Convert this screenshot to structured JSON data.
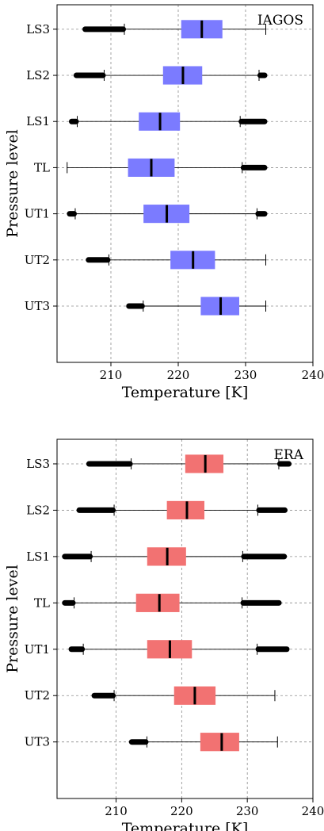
{
  "chart_data": [
    {
      "type": "boxplot",
      "orientation": "horizontal",
      "title": "IAGOS",
      "xlabel": "Temperature [K]",
      "ylabel": "Pressure level",
      "xlim": [
        202,
        240
      ],
      "xticks": [
        210,
        220,
        230,
        240
      ],
      "grid": true,
      "box_color": "#7b7bff",
      "categories": [
        "LS3",
        "LS2",
        "LS1",
        "TL",
        "UT1",
        "UT2",
        "UT3"
      ],
      "boxes": [
        {
          "label": "LS3",
          "whisker_low": 212.0,
          "q1": 220.5,
          "median": 223.5,
          "q3": 226.5,
          "whisker_high": 233.0,
          "outliers_low": [
            206.0,
            212.0
          ],
          "outliers_high": []
        },
        {
          "label": "LS2",
          "whisker_low": 209.0,
          "q1": 217.8,
          "median": 220.7,
          "q3": 223.5,
          "whisker_high": 232.0,
          "outliers_low": [
            204.7,
            209.0
          ],
          "outliers_high": [
            232.0,
            233.0
          ]
        },
        {
          "label": "LS1",
          "whisker_low": 205.0,
          "q1": 214.2,
          "median": 217.3,
          "q3": 220.2,
          "whisker_high": 229.2,
          "outliers_low": [
            204.0,
            205.0
          ],
          "outliers_high": [
            229.2,
            233.0
          ]
        },
        {
          "label": "TL",
          "whisker_low": 203.5,
          "q1": 212.6,
          "median": 216.0,
          "q3": 219.4,
          "whisker_high": 229.5,
          "outliers_low": [],
          "outliers_high": [
            229.5,
            233.0
          ]
        },
        {
          "label": "UT1",
          "whisker_low": 204.7,
          "q1": 214.9,
          "median": 218.3,
          "q3": 221.6,
          "whisker_high": 231.7,
          "outliers_low": [
            203.7,
            204.7
          ],
          "outliers_high": [
            231.7,
            233.0
          ]
        },
        {
          "label": "UT2",
          "whisker_low": 209.7,
          "q1": 218.9,
          "median": 222.2,
          "q3": 225.4,
          "whisker_high": 233.0,
          "outliers_low": [
            206.5,
            209.7
          ],
          "outliers_high": []
        },
        {
          "label": "UT3",
          "whisker_low": 214.8,
          "q1": 223.4,
          "median": 226.3,
          "q3": 229.0,
          "whisker_high": 233.0,
          "outliers_low": [
            212.5,
            214.8
          ],
          "outliers_high": []
        }
      ]
    },
    {
      "type": "boxplot",
      "orientation": "horizontal",
      "title": "ERA",
      "xlabel": "Temperature [K]",
      "ylabel": "Pressure level",
      "xlim": [
        201,
        240
      ],
      "xticks": [
        210,
        220,
        230,
        240
      ],
      "grid": true,
      "box_color": "#f27272",
      "categories": [
        "LS3",
        "LS2",
        "LS1",
        "TL",
        "UT1",
        "UT2",
        "UT3"
      ],
      "boxes": [
        {
          "label": "LS3",
          "whisker_low": 212.3,
          "q1": 220.6,
          "median": 223.6,
          "q3": 226.3,
          "whisker_high": 234.8,
          "outliers_low": [
            205.7,
            212.3
          ],
          "outliers_high": [
            234.8,
            236.5
          ]
        },
        {
          "label": "LS2",
          "whisker_low": 209.7,
          "q1": 217.8,
          "median": 220.8,
          "q3": 223.4,
          "whisker_high": 231.6,
          "outliers_low": [
            204.2,
            209.7
          ],
          "outliers_high": [
            231.6,
            235.9
          ]
        },
        {
          "label": "LS1",
          "whisker_low": 206.2,
          "q1": 214.8,
          "median": 217.8,
          "q3": 220.6,
          "whisker_high": 229.3,
          "outliers_low": [
            202.0,
            206.2
          ],
          "outliers_high": [
            229.3,
            235.8
          ]
        },
        {
          "label": "TL",
          "whisker_low": 203.6,
          "q1": 213.1,
          "median": 216.6,
          "q3": 219.6,
          "whisker_high": 229.2,
          "outliers_low": [
            202.0,
            203.6
          ],
          "outliers_high": [
            229.2,
            235.0
          ]
        },
        {
          "label": "UT1",
          "whisker_low": 205.0,
          "q1": 214.8,
          "median": 218.2,
          "q3": 221.5,
          "whisker_high": 231.5,
          "outliers_low": [
            203.0,
            205.0
          ],
          "outliers_high": [
            231.5,
            236.2
          ]
        },
        {
          "label": "UT2",
          "whisker_low": 209.7,
          "q1": 218.9,
          "median": 222.0,
          "q3": 225.1,
          "whisker_high": 234.2,
          "outliers_low": [
            206.5,
            209.7
          ],
          "outliers_high": []
        },
        {
          "label": "UT3",
          "whisker_low": 214.7,
          "q1": 222.9,
          "median": 226.1,
          "q3": 228.7,
          "whisker_high": 234.6,
          "outliers_low": [
            212.2,
            214.7
          ],
          "outliers_high": []
        }
      ]
    }
  ]
}
